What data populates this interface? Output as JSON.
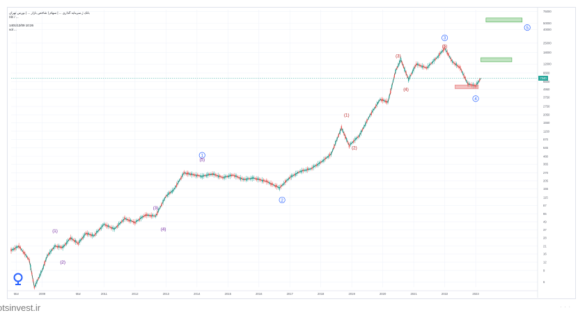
{
  "header": {
    "title_line1": "بانک ژ.سرمایه گذاری ... | سهام | شاخص بازار ... | بورس تهران",
    "title_line2": "کالا / ...",
    "date_line": "1401/12/09 10:26",
    "volume_line": "vol ..."
  },
  "price_label": "7340",
  "watermark": "otsinvest.ir",
  "colors": {
    "up": "#26a69a",
    "down": "#ef5350",
    "wave_major": "#2962ff",
    "wave_red": "#b71c1c",
    "wave_purple": "#6a1b9a",
    "target_box": "#4caf50",
    "support_box": "#e57373",
    "grid": "#f0f3fa",
    "price_line": "#26a69a"
  },
  "chart_data": {
    "type": "line",
    "x_tick_labels": [
      "Mar",
      "2009",
      "Mar",
      "2011",
      "2012",
      "2013",
      "2014",
      "2015",
      "2016",
      "2017",
      "2018",
      "2019",
      "2020",
      "2021",
      "2022",
      "2023"
    ],
    "y_tick_labels": [
      "75000",
      "50000",
      "40000",
      "25000",
      "18000",
      "12000",
      "8800",
      "6500",
      "4950",
      "3750",
      "2750",
      "2050",
      "1550",
      "1150",
      "870",
      "645",
      "480",
      "365",
      "270",
      "205",
      "155",
      "115",
      "87",
      "65",
      "49",
      "37",
      "28",
      "21",
      "16",
      "12",
      "9",
      "6"
    ],
    "y_scale": "log",
    "grid": true,
    "series": [
      {
        "x": [
          "2008-01",
          "2008-04",
          "2008-08",
          "2008-10",
          "2009-01",
          "2009-03",
          "2009-06",
          "2009-09",
          "2009-12",
          "2010-03",
          "2010-06",
          "2010-09",
          "2011-01",
          "2011-05",
          "2011-09",
          "2012-01",
          "2012-05",
          "2012-09",
          "2013-01",
          "2013-04",
          "2013-08",
          "2013-11",
          "2014-03",
          "2014-07",
          "2014-11",
          "2015-03",
          "2015-07",
          "2015-11",
          "2016-04",
          "2016-09",
          "2017-01",
          "2017-05",
          "2017-09",
          "2018-01",
          "2018-05",
          "2018-09",
          "2018-12",
          "2019-04",
          "2019-08",
          "2019-12",
          "2020-03",
          "2020-06",
          "2020-08",
          "2020-11",
          "2021-02",
          "2021-06",
          "2021-10",
          "2022-01",
          "2022-04",
          "2022-07",
          "2022-10",
          "2023-01",
          "2023-03"
        ],
        "values": [
          18,
          21,
          13,
          5,
          9,
          15,
          21,
          20,
          28,
          23,
          33,
          30,
          45,
          38,
          55,
          48,
          62,
          60,
          120,
          150,
          270,
          255,
          240,
          260,
          230,
          250,
          215,
          225,
          200,
          160,
          230,
          285,
          310,
          390,
          520,
          1300,
          700,
          1000,
          2000,
          3500,
          3200,
          9500,
          14000,
          7000,
          12000,
          10500,
          15000,
          21000,
          13000,
          10500,
          6000,
          5600,
          7340
        ]
      }
    ],
    "wave_labels": [
      {
        "text": "(1)",
        "x": "2009-06",
        "y": 36,
        "color": "purple"
      },
      {
        "text": "(2)",
        "x": "2009-09",
        "y": 12,
        "color": "purple"
      },
      {
        "text": "(3)",
        "x": "2012-09",
        "y": 80,
        "color": "purple"
      },
      {
        "text": "(4)",
        "x": "2012-12",
        "y": 38,
        "color": "purple"
      },
      {
        "text": "1",
        "x": "2014-03",
        "y": 500,
        "color": "blue"
      },
      {
        "text": "(5)",
        "x": "2014-03",
        "y": 430,
        "color": "purple"
      },
      {
        "text": "2",
        "x": "2016-10",
        "y": 105,
        "color": "blue"
      },
      {
        "text": "(1)",
        "x": "2018-11",
        "y": 2050,
        "color": "red"
      },
      {
        "text": "(2)",
        "x": "2019-02",
        "y": 650,
        "color": "red"
      },
      {
        "text": "(3)",
        "x": "2020-07",
        "y": 16000,
        "color": "red"
      },
      {
        "text": "(4)",
        "x": "2020-10",
        "y": 5000,
        "color": "red"
      },
      {
        "text": "3",
        "x": "2022-01",
        "y": 30000,
        "color": "blue"
      },
      {
        "text": "(5)",
        "x": "2022-01",
        "y": 22500,
        "color": "red"
      },
      {
        "text": "4",
        "x": "2023-01",
        "y": 3600,
        "color": "blue"
      },
      {
        "text": "5",
        "x": "2024-09",
        "y": 43000,
        "color": "blue"
      }
    ],
    "boxes": [
      {
        "kind": "target",
        "x0": "2023-05",
        "x1": "2024-07",
        "y0": 52000,
        "y1": 60000
      },
      {
        "kind": "target",
        "x0": "2023-03",
        "x1": "2024-03",
        "y0": 13000,
        "y1": 15000
      },
      {
        "kind": "support",
        "x0": "2022-05",
        "x1": "2023-02",
        "y0": 5100,
        "y1": 5800
      }
    ],
    "last_price": 7340
  }
}
